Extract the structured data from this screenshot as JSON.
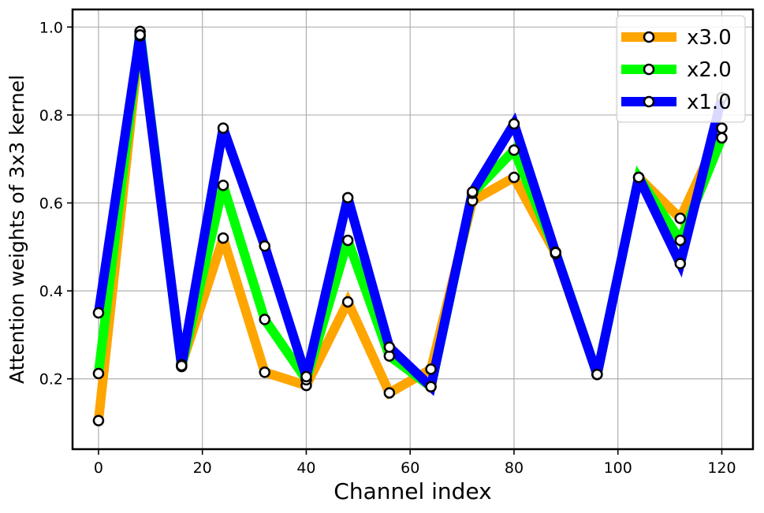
{
  "chart_data": {
    "type": "line",
    "title": "",
    "xlabel": "Channel index",
    "ylabel": "Attention weights of 3x3 kernel",
    "xlim": [
      -5,
      126
    ],
    "ylim": [
      0.04,
      1.04
    ],
    "xticks": [
      0,
      20,
      40,
      60,
      80,
      100,
      120
    ],
    "yticks": [
      0.2,
      0.4,
      0.6,
      0.8,
      1.0
    ],
    "xtick_labels": [
      "0",
      "20",
      "40",
      "60",
      "80",
      "100",
      "120"
    ],
    "ytick_labels": [
      "0.2",
      "0.4",
      "0.6",
      "0.8",
      "1.0"
    ],
    "grid": true,
    "legend_position": "top-right",
    "x": [
      0,
      8,
      16,
      24,
      32,
      40,
      48,
      56,
      64,
      72,
      80,
      88,
      96,
      104,
      112,
      120
    ],
    "series": [
      {
        "name": "x3.0",
        "color": "#FFA500",
        "values": [
          0.105,
          0.98,
          0.232,
          0.52,
          0.215,
          0.185,
          0.375,
          0.168,
          0.222,
          0.605,
          0.658,
          0.485,
          0.21,
          0.658,
          0.565,
          0.77
        ]
      },
      {
        "name": "x2.0",
        "color": "#00FF00",
        "values": [
          0.212,
          0.99,
          0.228,
          0.64,
          0.335,
          0.198,
          0.515,
          0.252,
          0.182,
          0.622,
          0.72,
          0.488,
          0.21,
          0.658,
          0.515,
          0.748
        ]
      },
      {
        "name": "x1.0",
        "color": "#0000FF",
        "values": [
          0.35,
          0.982,
          0.23,
          0.77,
          0.502,
          0.205,
          0.612,
          0.272,
          0.182,
          0.625,
          0.78,
          0.487,
          0.21,
          0.658,
          0.462,
          0.84
        ]
      }
    ]
  }
}
